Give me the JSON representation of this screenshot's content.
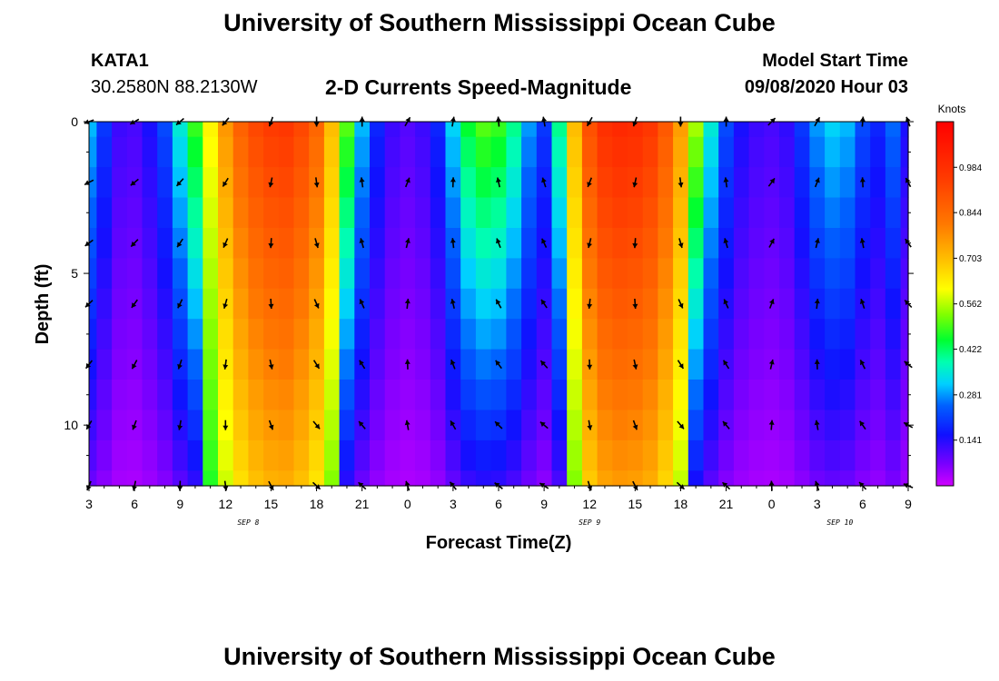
{
  "header": {
    "title": "University of Southern Mississippi Ocean Cube",
    "station_id": "KATA1",
    "coordinates": "30.2580N 88.2130W",
    "model_start_label": "Model Start Time",
    "model_start_value": "09/08/2020 Hour 03"
  },
  "footer": {
    "title": "University of Southern Mississippi Ocean Cube"
  },
  "chart_data": {
    "type": "heatmap",
    "title": "2-D Currents Speed-Magnitude",
    "xlabel": "Forecast Time(Z)",
    "ylabel": "Depth (ft)",
    "x_range_hours": [
      0,
      54
    ],
    "x_tick_labels": [
      "3",
      "6",
      "9",
      "12",
      "15",
      "18",
      "21",
      "0",
      "3",
      "6",
      "9",
      "12",
      "15",
      "18",
      "21",
      "0",
      "3",
      "6",
      "9"
    ],
    "date_labels": [
      {
        "hour": 10.5,
        "label": "SEP 8"
      },
      {
        "hour": 33,
        "label": "SEP 9"
      },
      {
        "hour": 49.5,
        "label": "SEP 10"
      }
    ],
    "ylim": [
      0,
      12
    ],
    "y_ticks": [
      0,
      5,
      10
    ],
    "colorbar": {
      "label": "Knots",
      "range": [
        0,
        1.125
      ],
      "tick_values": [
        0.141,
        0.281,
        0.422,
        0.562,
        0.703,
        0.844,
        0.984
      ],
      "tick_labels": [
        "0.141",
        "0.281",
        "0.422",
        "0.562",
        "0.703",
        "0.844",
        "0.984"
      ]
    },
    "depths_ft": [
      0,
      1,
      2,
      3,
      4,
      5,
      6,
      7,
      8,
      9,
      10,
      11,
      12
    ],
    "speed_profile_hourly": [
      0.3,
      0.2,
      0.12,
      0.11,
      0.15,
      0.22,
      0.35,
      0.48,
      0.62,
      0.76,
      0.86,
      0.92,
      0.95,
      0.96,
      0.92,
      0.85,
      0.7,
      0.5,
      0.3,
      0.18,
      0.12,
      0.1,
      0.12,
      0.18,
      0.32,
      0.45,
      0.5,
      0.48,
      0.4,
      0.28,
      0.2,
      0.4,
      0.7,
      0.9,
      0.98,
      1.0,
      0.99,
      0.96,
      0.88,
      0.75,
      0.55,
      0.35,
      0.22,
      0.15,
      0.12,
      0.11,
      0.13,
      0.2,
      0.28,
      0.32,
      0.3,
      0.22,
      0.18,
      0.25,
      0.15
    ],
    "vector_depths_ft": [
      0,
      2,
      4,
      6,
      8,
      10,
      12
    ],
    "vector_hours": [
      0,
      3,
      6,
      9,
      12,
      15,
      18,
      21,
      24,
      27,
      30,
      33,
      36,
      39,
      42,
      45,
      48,
      51,
      54
    ],
    "vector_direction_deg": [
      200,
      210,
      220,
      230,
      250,
      270,
      90,
      60,
      80,
      95,
      100,
      240,
      250,
      270,
      90,
      45,
      60,
      85,
      110
    ]
  }
}
